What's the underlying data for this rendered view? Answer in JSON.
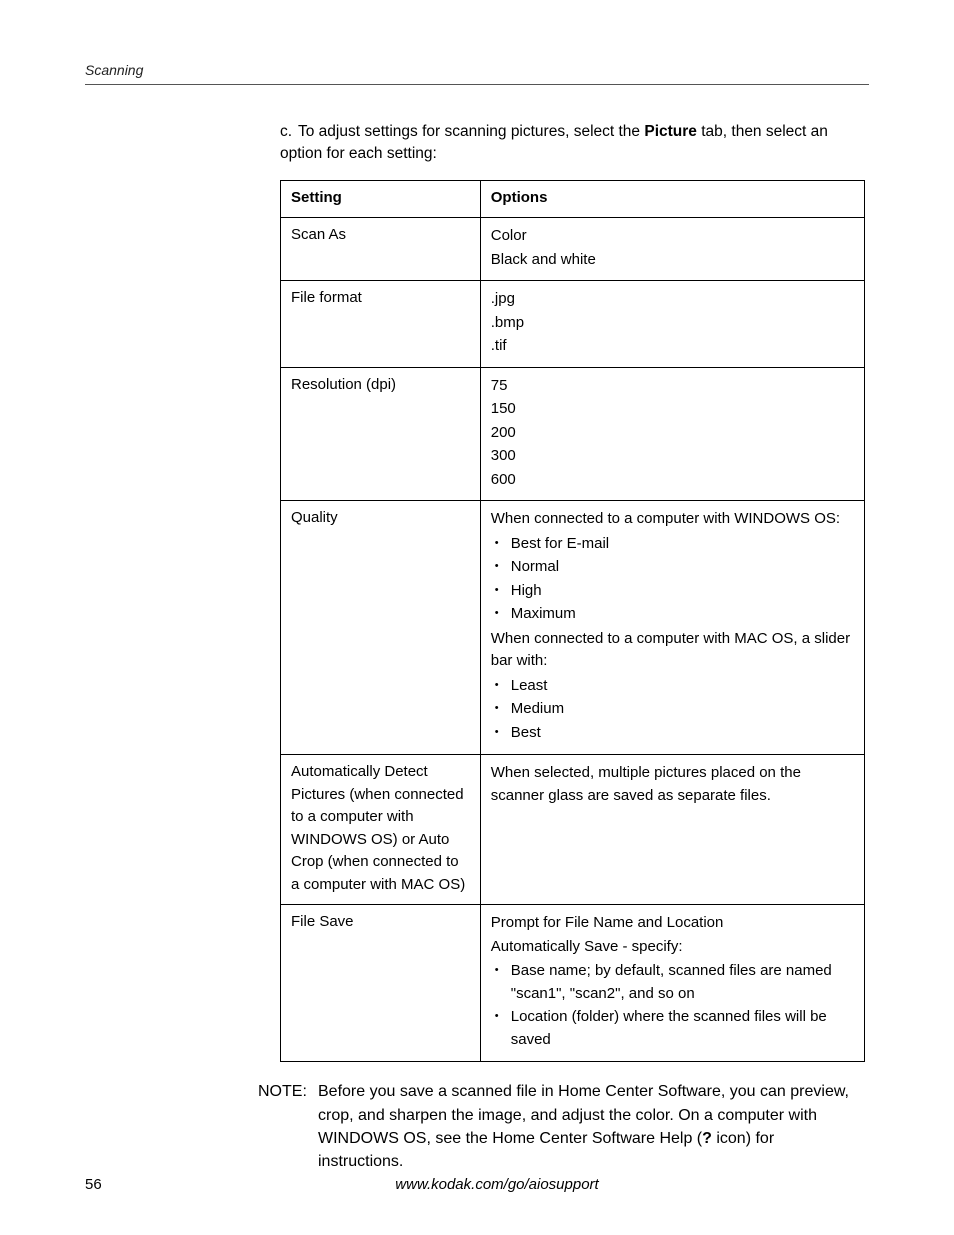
{
  "header": {
    "running_title": "Scanning"
  },
  "step": {
    "marker": "c.",
    "text_pre": "To adjust settings for scanning pictures, select the ",
    "text_bold": "Picture",
    "text_post": " tab, then select an option for each setting:"
  },
  "table": {
    "head": {
      "setting": "Setting",
      "options": "Options"
    },
    "rows": [
      {
        "setting": "Scan As",
        "options": [
          {
            "type": "line",
            "text": "Color"
          },
          {
            "type": "line",
            "text": "Black and white"
          }
        ]
      },
      {
        "setting": "File format",
        "options": [
          {
            "type": "line",
            "text": ".jpg"
          },
          {
            "type": "line",
            "text": ".bmp"
          },
          {
            "type": "line",
            "text": ".tif"
          }
        ]
      },
      {
        "setting": "Resolution (dpi)",
        "options": [
          {
            "type": "line",
            "text": "75"
          },
          {
            "type": "line",
            "text": "150"
          },
          {
            "type": "line",
            "text": "200"
          },
          {
            "type": "line",
            "text": "300"
          },
          {
            "type": "line",
            "text": "600"
          }
        ]
      },
      {
        "setting": "Quality",
        "options": [
          {
            "type": "line",
            "text": "When connected to a computer with WINDOWS OS:"
          },
          {
            "type": "bullet",
            "text": "Best for E-mail"
          },
          {
            "type": "bullet",
            "text": "Normal"
          },
          {
            "type": "bullet",
            "text": "High"
          },
          {
            "type": "bullet",
            "text": "Maximum"
          },
          {
            "type": "line",
            "text": "When connected to a computer with MAC OS, a slider bar with:"
          },
          {
            "type": "bullet",
            "text": "Least"
          },
          {
            "type": "bullet",
            "text": "Medium"
          },
          {
            "type": "bullet",
            "text": "Best"
          }
        ]
      },
      {
        "setting": "Automatically Detect Pictures (when connected to a computer with WINDOWS OS) or Auto Crop (when connected to a computer with MAC OS)",
        "options": [
          {
            "type": "line",
            "text": "When selected, multiple pictures placed on the scanner glass are saved as separate files."
          }
        ]
      },
      {
        "setting": "File Save",
        "options": [
          {
            "type": "line",
            "text": "Prompt for File Name and Location"
          },
          {
            "type": "line",
            "text": "Automatically Save - specify:"
          },
          {
            "type": "bullet",
            "text": "Base name; by default, scanned files are named \"scan1\", \"scan2\", and so on"
          },
          {
            "type": "bullet",
            "text": "Location (folder) where the scanned files will be saved"
          }
        ]
      }
    ]
  },
  "note": {
    "label": "NOTE:",
    "text_pre": "Before you save a scanned file in Home Center Software, you can preview, crop, and sharpen the image, and adjust the color. On a computer with WINDOWS OS, see the Home Center Software Help (",
    "text_bold": "?",
    "text_post": " icon) for instructions."
  },
  "footer": {
    "page_number": "56",
    "url": "www.kodak.com/go/aiosupport"
  }
}
